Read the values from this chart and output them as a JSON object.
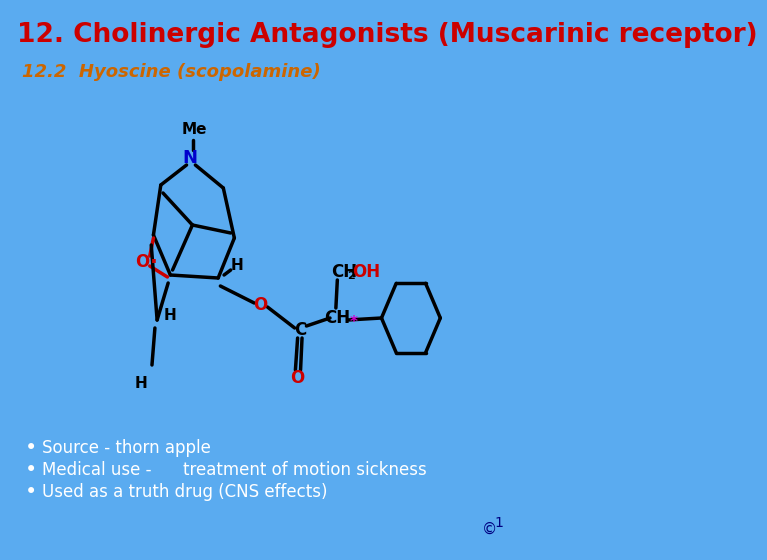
{
  "bg_color": "#5aabf0",
  "title": "12. Cholinergic Antagonists (Muscarinic receptor)",
  "title_color": "#cc0000",
  "title_fontsize": 19,
  "subtitle": "12.2  Hyoscine (scopolamine)",
  "subtitle_color": "#cc6600",
  "subtitle_fontsize": 13,
  "bullet_color": "#ffffff",
  "bullet_fontsize": 12,
  "bullets": [
    "Source - thorn apple",
    "Medical use -      treatment of motion sickness",
    "Used as a truth drug (CNS effects)"
  ],
  "copyright_color": "#000080",
  "copyright_fontsize": 11,
  "atom_color_N": "#0000cc",
  "atom_color_O": "#cc0000",
  "atom_color_black": "#000000",
  "atom_color_star": "#cc00cc",
  "lw": 2.5
}
